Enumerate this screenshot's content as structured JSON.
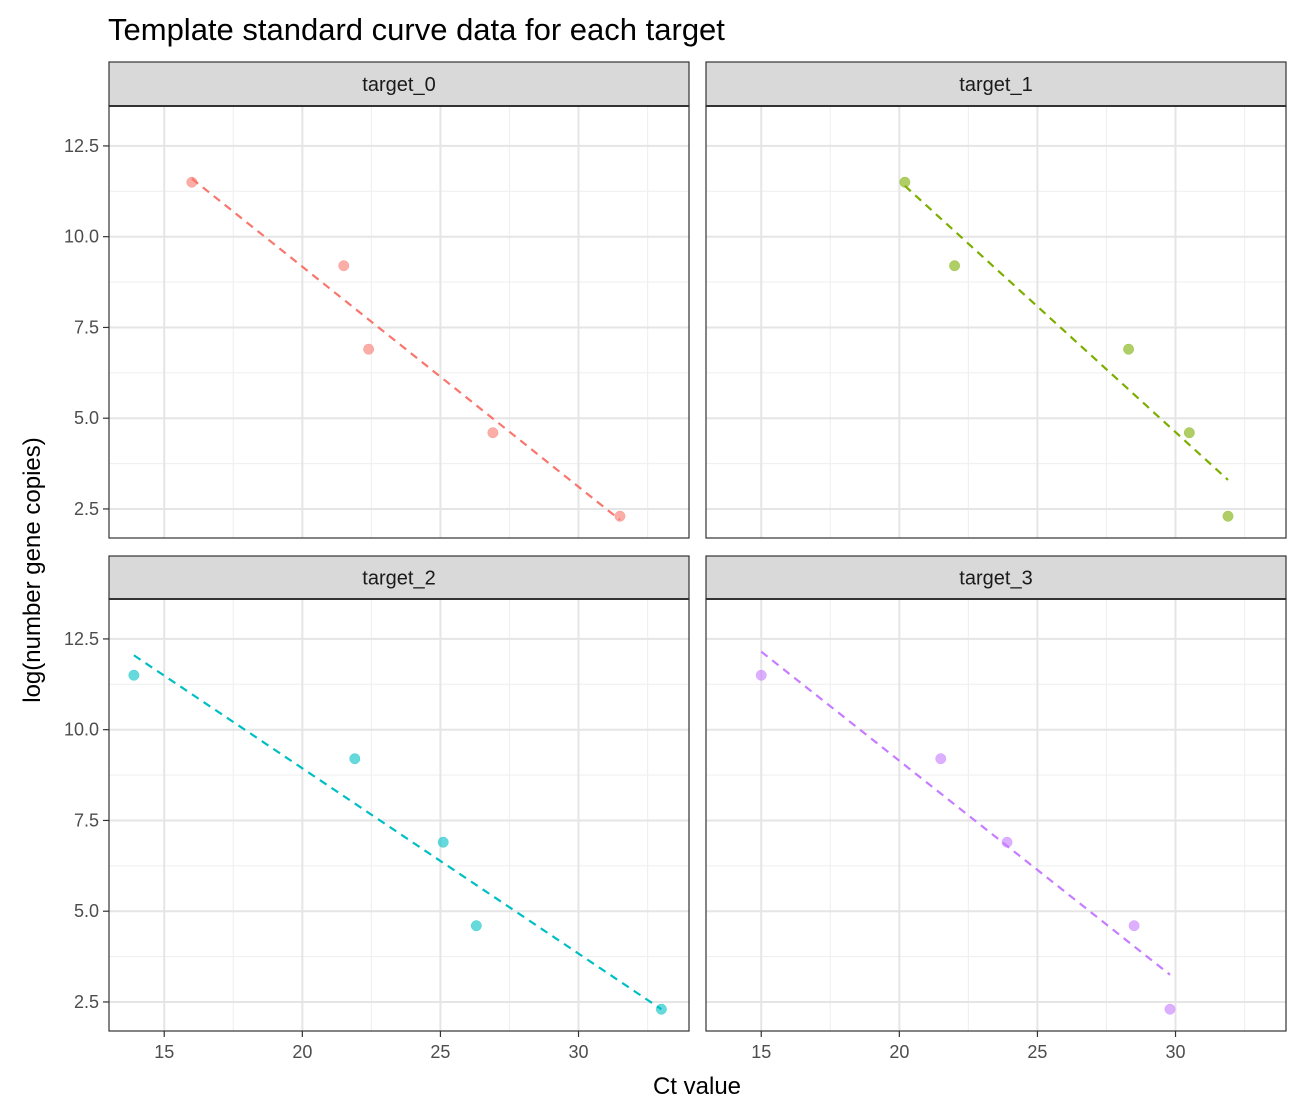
{
  "chart_data": {
    "type": "scatter",
    "title": "Template standard curve data for each target",
    "xlabel": "Ct value",
    "ylabel": "log(number gene copies)",
    "facet_layout": "2x2",
    "xlim": [
      13,
      34
    ],
    "ylim": [
      1.7,
      13.6
    ],
    "x_ticks": [
      15,
      20,
      25,
      30
    ],
    "x_tick_labels": [
      "15",
      "20",
      "25",
      "30"
    ],
    "y_ticks": [
      2.5,
      5.0,
      7.5,
      10.0,
      12.5
    ],
    "y_tick_labels": [
      "2.5",
      "5.0",
      "7.5",
      "10.0",
      "12.5"
    ],
    "grid": true,
    "fit": "linear regression, dashed line",
    "panels": [
      {
        "name": "target_0",
        "color": "#F8766D",
        "points": [
          {
            "x": 16.0,
            "y": 11.5
          },
          {
            "x": 21.5,
            "y": 9.2
          },
          {
            "x": 22.4,
            "y": 6.9
          },
          {
            "x": 26.9,
            "y": 4.6
          },
          {
            "x": 31.5,
            "y": 2.3
          }
        ],
        "fit_line": {
          "x": [
            16.0,
            31.5
          ],
          "y": [
            11.6,
            2.2
          ]
        }
      },
      {
        "name": "target_1",
        "color": "#7CAE00",
        "points": [
          {
            "x": 20.2,
            "y": 11.5
          },
          {
            "x": 22.0,
            "y": 9.2
          },
          {
            "x": 28.3,
            "y": 6.9
          },
          {
            "x": 30.5,
            "y": 4.6
          },
          {
            "x": 31.9,
            "y": 2.3
          }
        ],
        "fit_line": {
          "x": [
            20.2,
            31.9
          ],
          "y": [
            11.4,
            3.3
          ]
        }
      },
      {
        "name": "target_2",
        "color": "#00BFC4",
        "points": [
          {
            "x": 13.9,
            "y": 11.5
          },
          {
            "x": 21.9,
            "y": 9.2
          },
          {
            "x": 25.1,
            "y": 6.9
          },
          {
            "x": 26.3,
            "y": 4.6
          },
          {
            "x": 33.0,
            "y": 2.3
          }
        ],
        "fit_line": {
          "x": [
            13.9,
            33.0
          ],
          "y": [
            12.05,
            2.3
          ]
        }
      },
      {
        "name": "target_3",
        "color": "#C77CFF",
        "points": [
          {
            "x": 15.0,
            "y": 11.5
          },
          {
            "x": 21.5,
            "y": 9.2
          },
          {
            "x": 23.9,
            "y": 6.9
          },
          {
            "x": 28.5,
            "y": 4.6
          },
          {
            "x": 29.8,
            "y": 2.3
          }
        ],
        "fit_line": {
          "x": [
            15.0,
            29.8
          ],
          "y": [
            12.15,
            3.25
          ]
        }
      }
    ]
  }
}
